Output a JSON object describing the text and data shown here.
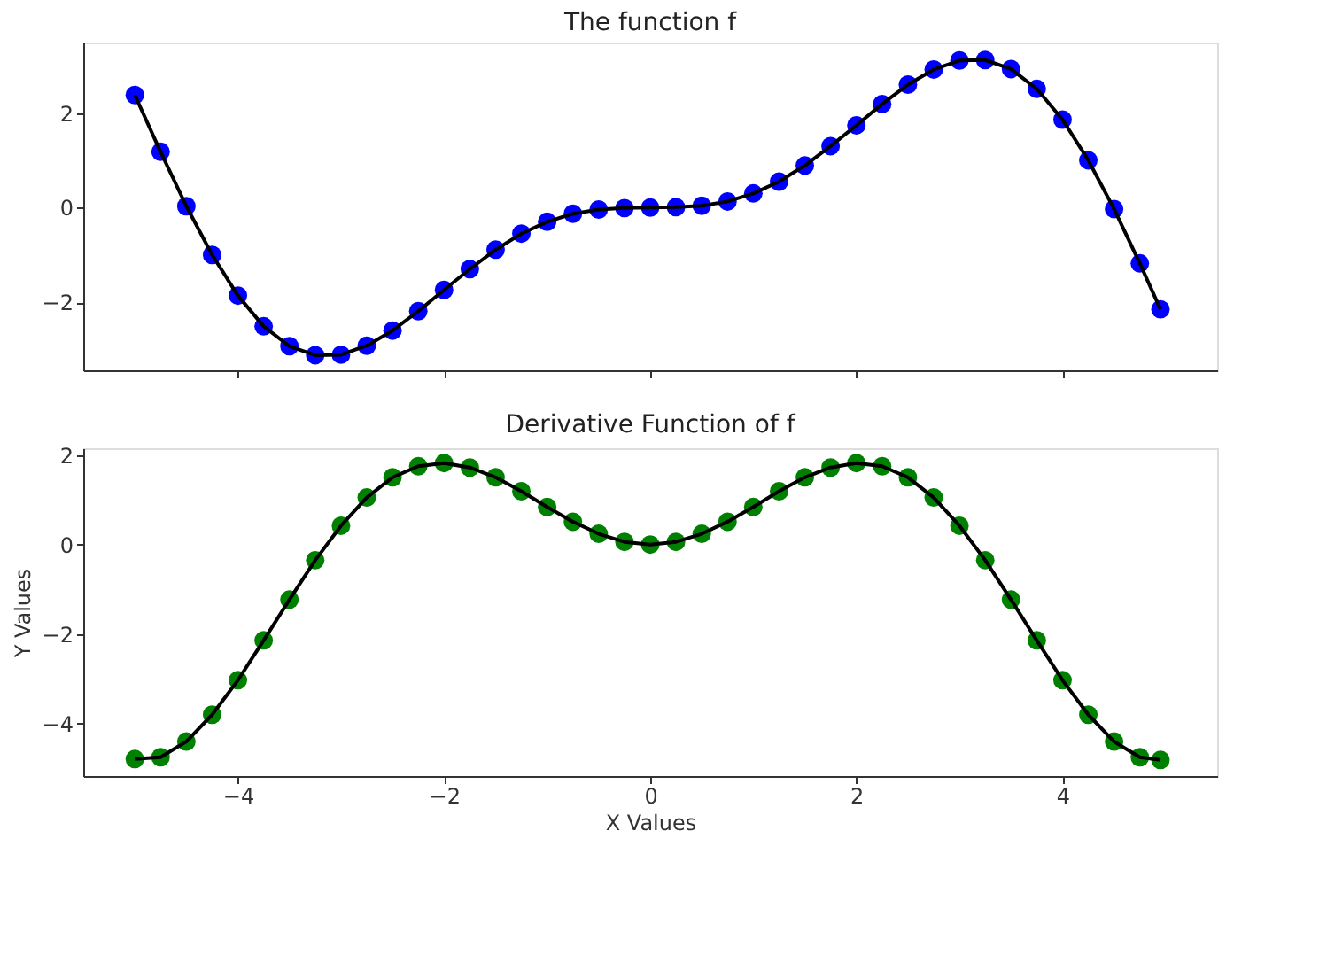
{
  "chart_data": [
    {
      "type": "line",
      "title": "The function f",
      "x": [
        -5,
        -4.75,
        -4.5,
        -4.25,
        -4,
        -3.75,
        -3.5,
        -3.25,
        -3,
        -2.75,
        -2.5,
        -2.25,
        -2,
        -1.75,
        -1.5,
        -1.25,
        -1,
        -0.75,
        -0.5,
        -0.25,
        0,
        0.25,
        0.5,
        0.75,
        1,
        1.25,
        1.5,
        1.75,
        2,
        2.25,
        2.5,
        2.75,
        3,
        3.25,
        3.5,
        3.75,
        4,
        4.25,
        4.5,
        4.75,
        4.95
      ],
      "series": [
        {
          "type": "scatter",
          "color": "#0000ff",
          "marker": "circle",
          "values": [
            2.38,
            1.18,
            0.03,
            -1.0,
            -1.86,
            -2.51,
            -2.93,
            -3.12,
            -3.11,
            -2.92,
            -2.6,
            -2.19,
            -1.74,
            -1.3,
            -0.89,
            -0.55,
            -0.3,
            -0.13,
            -0.04,
            -0.01,
            0,
            0.01,
            0.04,
            0.13,
            0.3,
            0.55,
            0.89,
            1.3,
            1.74,
            2.19,
            2.6,
            2.92,
            3.11,
            3.12,
            2.93,
            2.51,
            1.86,
            1.0,
            -0.03,
            -1.18,
            -2.15
          ]
        },
        {
          "type": "line",
          "color": "#000000",
          "line_style": "solid",
          "values": [
            2.38,
            1.18,
            0.03,
            -1.0,
            -1.86,
            -2.51,
            -2.93,
            -3.12,
            -3.11,
            -2.92,
            -2.6,
            -2.19,
            -1.74,
            -1.3,
            -0.89,
            -0.55,
            -0.3,
            -0.13,
            -0.04,
            -0.01,
            0,
            0.01,
            0.04,
            0.13,
            0.3,
            0.55,
            0.89,
            1.3,
            1.74,
            2.19,
            2.6,
            2.92,
            3.11,
            3.12,
            2.93,
            2.51,
            1.86,
            1.0,
            -0.03,
            -1.18,
            -2.15
          ]
        }
      ],
      "xlim": [
        -5.5,
        5.5
      ],
      "xticks": [
        -4,
        -2,
        0,
        2,
        4
      ],
      "ylim": [
        -3.44,
        3.49
      ],
      "yticks": [
        -2,
        0,
        2
      ],
      "tick_labels": "y",
      "grid": false
    },
    {
      "type": "line",
      "title": "Derivative Function of f",
      "xlabel": "X Values",
      "ylabel": "Y Values",
      "x": [
        -5,
        -4.75,
        -4.5,
        -4.25,
        -4,
        -3.75,
        -3.5,
        -3.25,
        -3,
        -2.75,
        -2.5,
        -2.25,
        -2,
        -1.75,
        -1.5,
        -1.25,
        -1,
        -0.75,
        -0.5,
        -0.25,
        0,
        0.25,
        0.5,
        0.75,
        1,
        1.25,
        1.5,
        1.75,
        2,
        2.25,
        2.5,
        2.75,
        3,
        3.25,
        3.5,
        3.75,
        4,
        4.25,
        4.5,
        4.75,
        4.95
      ],
      "series": [
        {
          "type": "scatter",
          "color": "#008000",
          "marker": "circle",
          "values": [
            -4.79,
            -4.75,
            -4.4,
            -3.8,
            -3.03,
            -2.14,
            -1.23,
            -0.35,
            0.42,
            1.05,
            1.5,
            1.75,
            1.82,
            1.72,
            1.5,
            1.19,
            0.84,
            0.51,
            0.24,
            0.06,
            0,
            0.06,
            0.24,
            0.51,
            0.84,
            1.19,
            1.5,
            1.72,
            1.82,
            1.75,
            1.5,
            1.05,
            0.42,
            -0.35,
            -1.23,
            -2.14,
            -3.03,
            -3.8,
            -4.4,
            -4.75,
            -4.81
          ]
        },
        {
          "type": "line",
          "color": "#000000",
          "line_style": "solid",
          "values": [
            -4.79,
            -4.75,
            -4.4,
            -3.8,
            -3.03,
            -2.14,
            -1.23,
            -0.35,
            0.42,
            1.05,
            1.5,
            1.75,
            1.82,
            1.72,
            1.5,
            1.19,
            0.84,
            0.51,
            0.24,
            0.06,
            0,
            0.06,
            0.24,
            0.51,
            0.84,
            1.19,
            1.5,
            1.72,
            1.82,
            1.75,
            1.5,
            1.05,
            0.42,
            -0.35,
            -1.23,
            -2.14,
            -3.03,
            -3.8,
            -4.4,
            -4.75,
            -4.81
          ]
        }
      ],
      "xlim": [
        -5.5,
        5.5
      ],
      "xticks": [
        -4,
        -2,
        0,
        2,
        4
      ],
      "ylim": [
        -5.17,
        2.15
      ],
      "yticks": [
        -4,
        -2,
        0,
        2
      ],
      "grid": false
    }
  ]
}
